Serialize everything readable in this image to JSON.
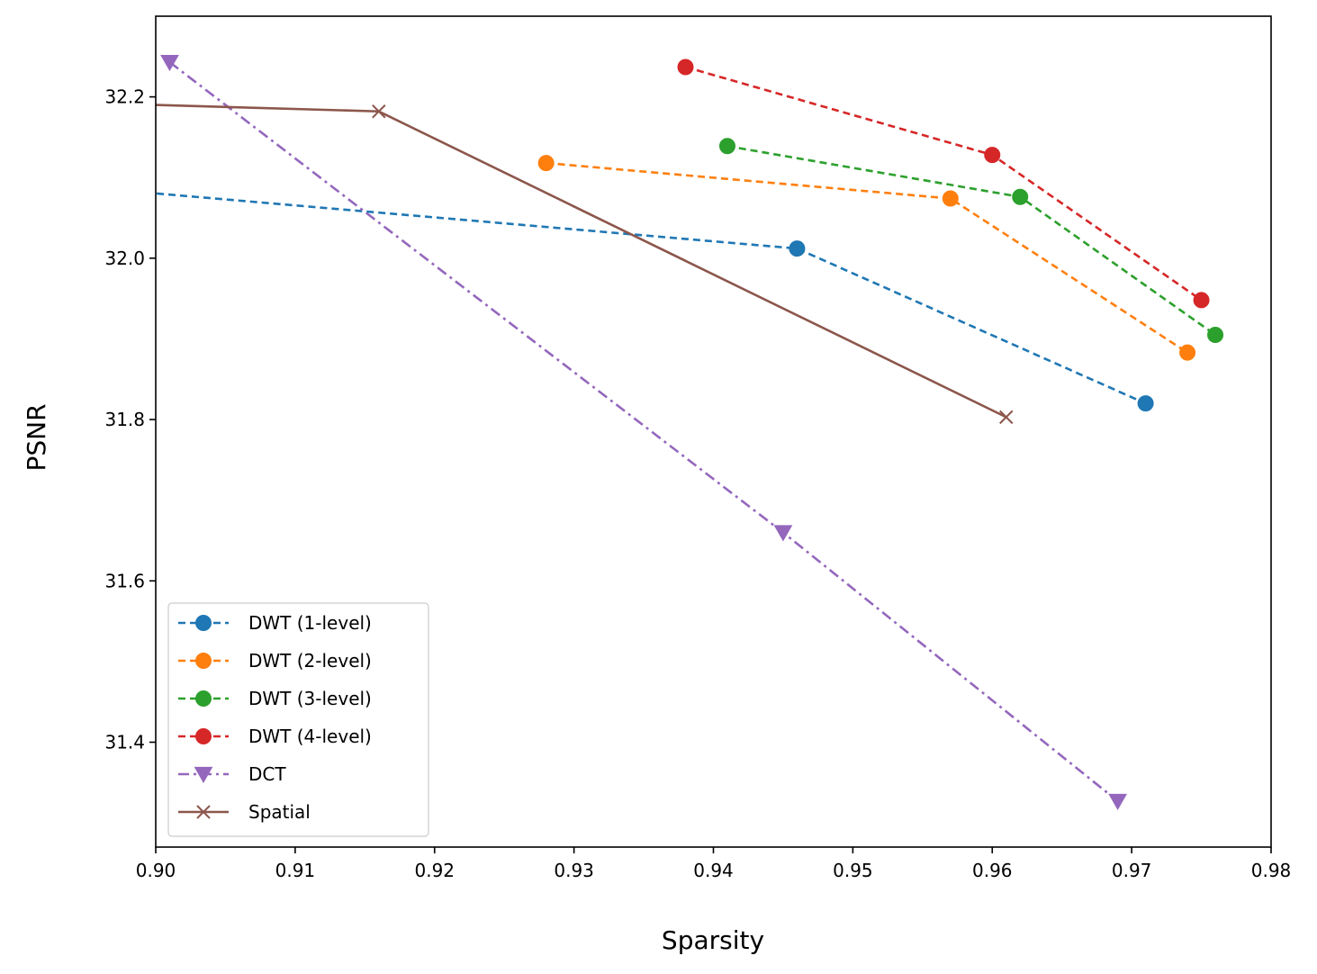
{
  "chart_data": {
    "type": "line",
    "xlabel": "Sparsity",
    "ylabel": "PSNR",
    "xlim": [
      0.9,
      0.98
    ],
    "ylim": [
      31.27,
      32.3
    ],
    "xticks": [
      "0.90",
      "0.91",
      "0.92",
      "0.93",
      "0.94",
      "0.95",
      "0.96",
      "0.97",
      "0.98"
    ],
    "yticks": [
      "31.4",
      "31.6",
      "31.8",
      "32.0",
      "32.2"
    ],
    "grid": false,
    "legend_position": "lower-left",
    "series": [
      {
        "name": "DWT (1-level)",
        "color": "#1f77b4",
        "linestyle": "dashed",
        "marker": "circle",
        "x": [
          0.88,
          0.946,
          0.971
        ],
        "y": [
          32.11,
          32.012,
          31.82
        ],
        "marker_from": 1
      },
      {
        "name": "DWT (2-level)",
        "color": "#ff7f0e",
        "linestyle": "dashed",
        "marker": "circle",
        "x": [
          0.928,
          0.957,
          0.974
        ],
        "y": [
          32.118,
          32.074,
          31.883
        ],
        "marker_from": 0
      },
      {
        "name": "DWT (3-level)",
        "color": "#2ca02c",
        "linestyle": "dashed",
        "marker": "circle",
        "x": [
          0.941,
          0.962,
          0.976
        ],
        "y": [
          32.139,
          32.076,
          31.905
        ],
        "marker_from": 0
      },
      {
        "name": "DWT (4-level)",
        "color": "#d62728",
        "linestyle": "dashed",
        "marker": "circle",
        "x": [
          0.938,
          0.96,
          0.975
        ],
        "y": [
          32.237,
          32.128,
          31.948
        ],
        "marker_from": 0
      },
      {
        "name": "DCT",
        "color": "#9467bd",
        "linestyle": "dashdot",
        "marker": "triangle-down",
        "x": [
          0.901,
          0.945,
          0.969
        ],
        "y": [
          32.243,
          31.66,
          31.327
        ],
        "marker_from": 0
      },
      {
        "name": "Spatial",
        "color": "#8c564b",
        "linestyle": "solid",
        "marker": "x",
        "x": [
          0.88,
          0.916,
          0.961
        ],
        "y": [
          32.2,
          32.182,
          31.803
        ],
        "marker_from": 1
      }
    ]
  }
}
